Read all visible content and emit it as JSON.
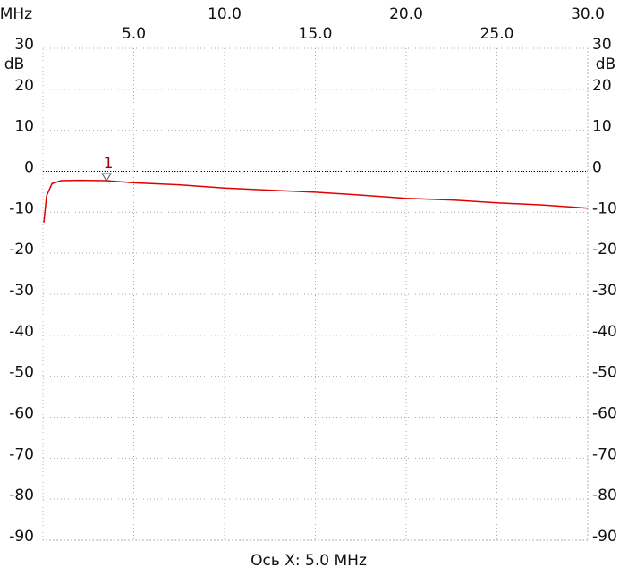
{
  "chart_data": {
    "type": "line",
    "x_unit": "/MHz",
    "y_label": "dB",
    "footer": "Ось X: 5.0 MHz",
    "xlim": [
      0,
      30
    ],
    "xticks": [
      {
        "value": 5,
        "label": "5.0"
      },
      {
        "value": 10,
        "label": "10.0"
      },
      {
        "value": 15,
        "label": "15.0"
      },
      {
        "value": 20,
        "label": "20.0"
      },
      {
        "value": 25,
        "label": "25.0"
      },
      {
        "value": 30,
        "label": "30.0"
      }
    ],
    "ylim": [
      -90,
      30
    ],
    "yticks": [
      30,
      20,
      10,
      0,
      -10,
      -20,
      -30,
      -40,
      -50,
      -60,
      -70,
      -80,
      -90
    ],
    "reference_line": 0,
    "grid": true,
    "x": [
      0.05,
      0.2,
      0.5,
      1,
      2,
      3.5,
      5,
      7.5,
      10,
      12.5,
      15,
      17.5,
      20,
      22.5,
      25,
      27.5,
      30
    ],
    "series": [
      {
        "color": "#e00000",
        "values": [
          -12.5,
          -6,
          -3,
          -2.3,
          -2.2,
          -2.3,
          -2.8,
          -3.3,
          -4.1,
          -4.6,
          -5.1,
          -5.8,
          -6.6,
          -7.0,
          -7.7,
          -8.2,
          -9.0
        ]
      }
    ],
    "marker": {
      "label": "1",
      "x": 3.5,
      "value": -2.3,
      "color": "#a00000"
    }
  }
}
